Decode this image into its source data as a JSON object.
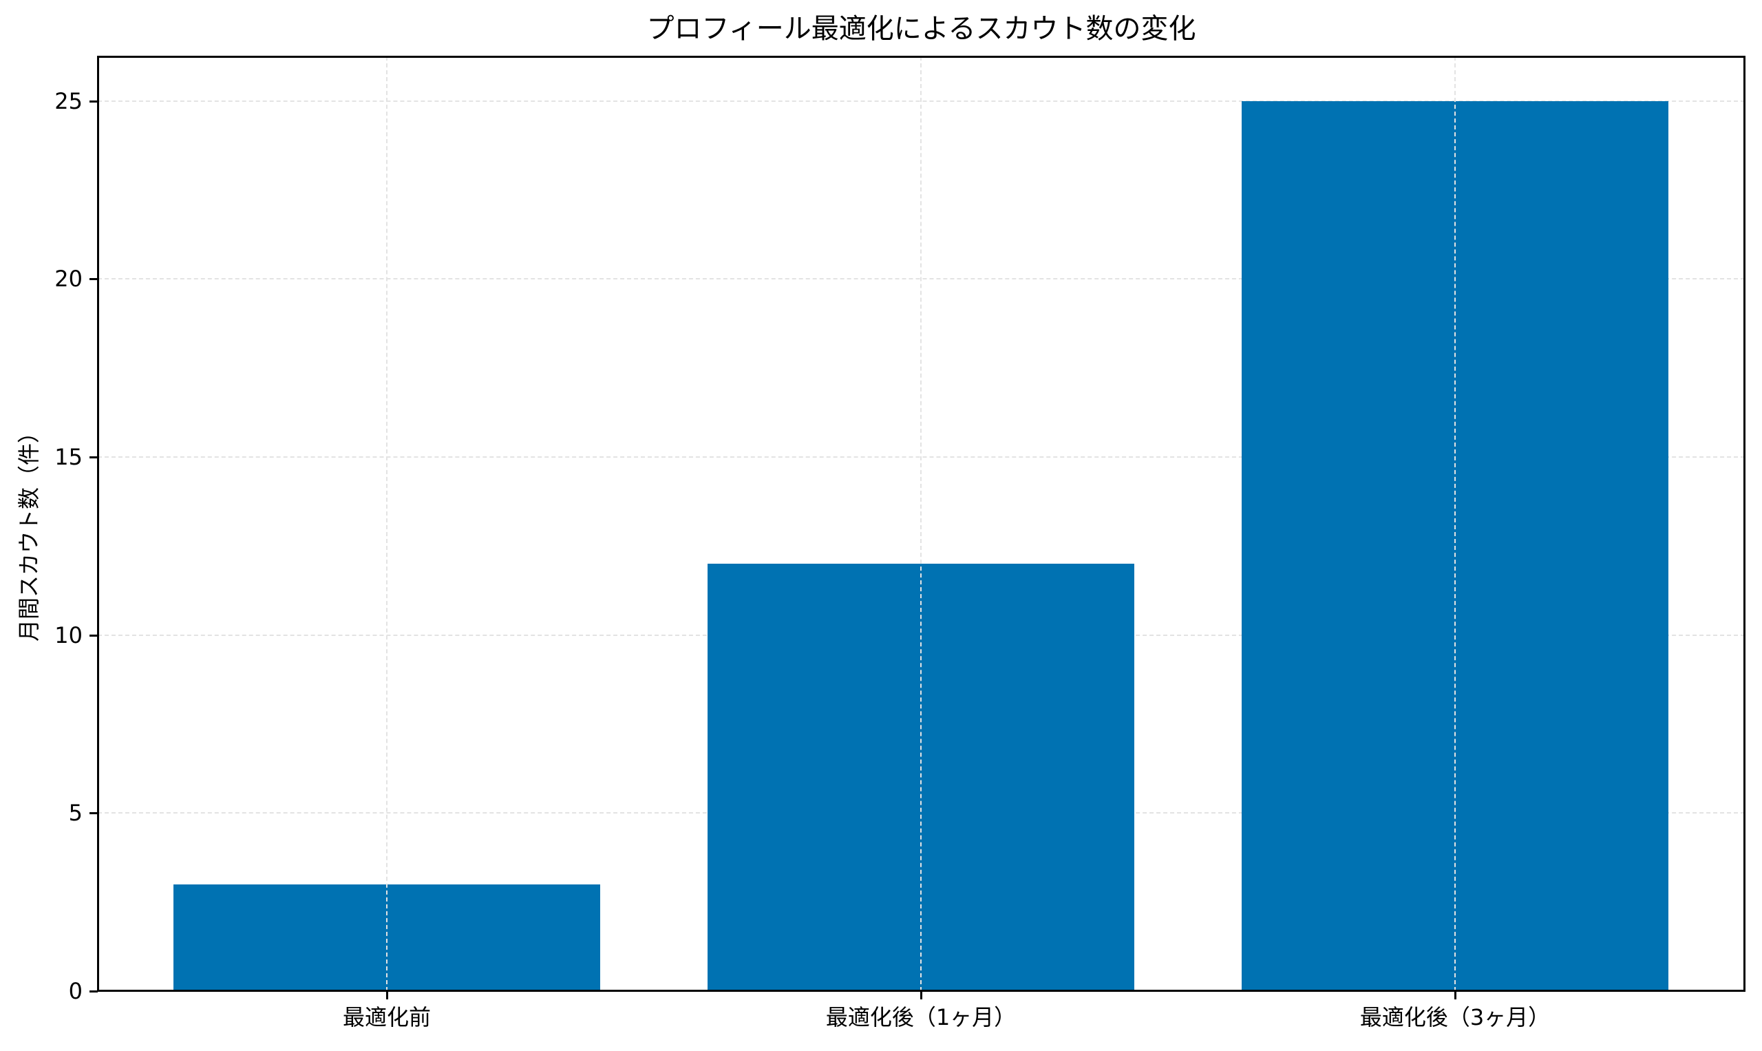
{
  "chart_data": {
    "type": "bar",
    "title": "プロフィール最適化によるスカウト数の変化",
    "xlabel": "",
    "ylabel": "月間スカウト数（件）",
    "categories": [
      "最適化前",
      "最適化後（1ヶ月）",
      "最適化後（3ヶ月）"
    ],
    "values": [
      3,
      12,
      25
    ],
    "ylim": [
      0,
      26.25
    ],
    "yticks": [
      0,
      5,
      10,
      15,
      20,
      25
    ],
    "grid": true,
    "legend": null,
    "colors": {
      "bar": "#0072B2",
      "grid": "#e3e3e3",
      "axis": "#000000"
    }
  }
}
